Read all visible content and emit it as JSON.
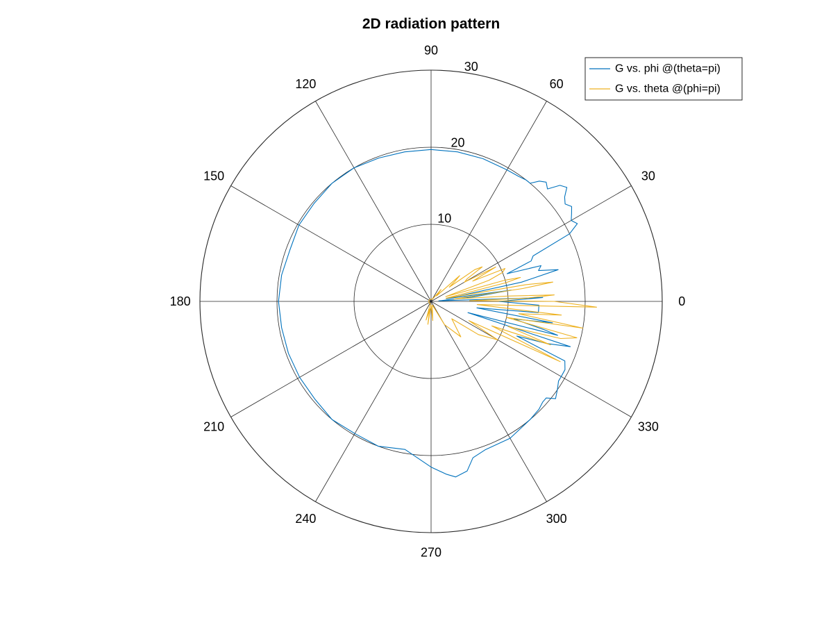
{
  "chart_data": {
    "type": "polar-line",
    "title": "2D radiation pattern",
    "theta_unit": "degrees",
    "theta_ticks": [
      0,
      30,
      60,
      90,
      120,
      150,
      180,
      210,
      240,
      270,
      300,
      330
    ],
    "theta_tick_labels": [
      "0",
      "30",
      "60",
      "90",
      "120",
      "150",
      "180",
      "210",
      "240",
      "270",
      "300",
      "330"
    ],
    "r_ticks": [
      10,
      20,
      30
    ],
    "r_tick_labels": [
      "10",
      "20",
      "30"
    ],
    "r_lim": [
      0,
      30
    ],
    "grid": true,
    "legend_position": "top-right",
    "series": [
      {
        "name": "G vs. phi @(theta=pi)",
        "color": "#0072BD",
        "theta": [
          0,
          2,
          4,
          6,
          8,
          10,
          12,
          14,
          16,
          18,
          20,
          22,
          24,
          26,
          28,
          30,
          32,
          34,
          36,
          38,
          40,
          42,
          44,
          46,
          48,
          50,
          52,
          55,
          60,
          70,
          80,
          90,
          100,
          110,
          120,
          130,
          140,
          150,
          160,
          170,
          180,
          190,
          200,
          210,
          220,
          230,
          240,
          250,
          260,
          270,
          275,
          278,
          282,
          285,
          290,
          300,
          310,
          315,
          318,
          320,
          322,
          325,
          328,
          330,
          333,
          336,
          338,
          340,
          342,
          343,
          345,
          346,
          348,
          350,
          352,
          354,
          356,
          358,
          360
        ],
        "r": [
          8.8,
          14.5,
          1.0,
          5.5,
          10.5,
          2.0,
          12.0,
          17.0,
          14.5,
          15.0,
          10.5,
          14.0,
          14.5,
          20.0,
          21.5,
          21.0,
          21.5,
          22.0,
          21.5,
          22.0,
          23.0,
          22.5,
          21.0,
          21.5,
          21.0,
          20.0,
          20.0,
          19.8,
          19.7,
          19.7,
          19.7,
          19.7,
          19.7,
          19.8,
          20.0,
          20.0,
          19.8,
          19.8,
          19.5,
          19.7,
          19.8,
          19.7,
          19.7,
          19.7,
          19.7,
          20.0,
          19.8,
          20.0,
          19.5,
          21.5,
          22.5,
          23.0,
          22.5,
          21.0,
          20.5,
          20.5,
          20.0,
          19.8,
          19.5,
          19.5,
          20.5,
          20.0,
          19.5,
          19.5,
          19.5,
          19.0,
          12.0,
          16.0,
          19.0,
          5.0,
          17.0,
          15.0,
          11.0,
          16.0,
          6.0,
          14.0,
          14.0,
          14.0,
          8.8
        ]
      },
      {
        "name": "G vs. theta @(phi=pi)",
        "color": "#EDB120",
        "theta": [
          0,
          1,
          2,
          3,
          4,
          6,
          8,
          9,
          10,
          12,
          14,
          15,
          16,
          18,
          20,
          22,
          24,
          26,
          28,
          30,
          32,
          34,
          36,
          38,
          40,
          42,
          45,
          50,
          60,
          80,
          100,
          130,
          160,
          180,
          190,
          200,
          210,
          230,
          250,
          255,
          258,
          260,
          262,
          265,
          270,
          275,
          280,
          290,
          300,
          310,
          320,
          325,
          330,
          333,
          335,
          338,
          340,
          342,
          344,
          346,
          348,
          350,
          352,
          354,
          356,
          358,
          360
        ],
        "r": [
          16.0,
          5.0,
          12.5,
          16.0,
          10.0,
          3.0,
          12.0,
          16.0,
          12.5,
          2.0,
          10.0,
          12.0,
          10.0,
          2.0,
          8.0,
          10.0,
          10.5,
          6.0,
          9.5,
          5.0,
          5.5,
          8.0,
          7.0,
          3.0,
          4.0,
          5.0,
          1.0,
          2.0,
          0.3,
          0.3,
          0.3,
          0.3,
          0.3,
          0.3,
          0.3,
          0.3,
          0.3,
          0.3,
          0.3,
          2.5,
          1.5,
          1.0,
          3.0,
          1.0,
          0.5,
          2.5,
          1.0,
          0.5,
          3.5,
          6.0,
          3.5,
          7.5,
          10.0,
          5.5,
          18.5,
          8.5,
          16.5,
          10.5,
          17.5,
          19.5,
          10.0,
          20.0,
          11.5,
          17.0,
          6.0,
          21.5,
          16.0
        ]
      }
    ]
  }
}
